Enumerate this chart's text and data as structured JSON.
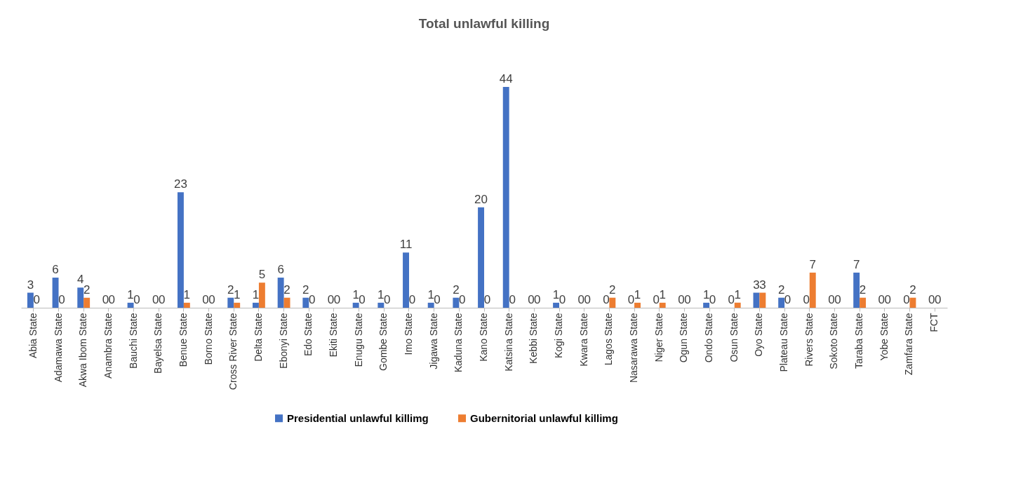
{
  "chart_data": {
    "type": "bar",
    "title": "Total unlawful killing",
    "categories": [
      "Abia State",
      "Adamawa State",
      "Akwa Ibom State",
      "Anambra State",
      "Bauchi State",
      "Bayelsa State",
      "Benue State",
      "Borno State",
      "Cross River State",
      "Delta State",
      "Ebonyi State",
      "Edo State",
      "Ekiti State",
      "Enugu State",
      "Gombe State",
      "Imo State",
      "Jigawa State",
      "Kaduna State",
      "Kano State",
      "Katsina State",
      "Kebbi State",
      "Kogi State",
      "Kwara State",
      "Lagos State",
      "Nasarawa State",
      "Niger State",
      "Ogun State",
      "Ondo State",
      "Osun State",
      "Oyo State",
      "Plateau State",
      "Rivers State",
      "Sokoto State",
      "Taraba State",
      "Yobe State",
      "Zamfara State",
      "FCT"
    ],
    "series": [
      {
        "name": "Presidential unlawful killimg",
        "color": "#4472c4",
        "values": [
          3,
          6,
          4,
          0,
          1,
          0,
          23,
          0,
          2,
          1,
          6,
          2,
          0,
          1,
          1,
          11,
          1,
          2,
          20,
          44,
          0,
          1,
          0,
          0,
          0,
          0,
          0,
          1,
          0,
          3,
          2,
          0,
          0,
          7,
          0,
          0,
          0
        ]
      },
      {
        "name": "Gubernitorial unlawful killimg",
        "color": "#ed7d31",
        "values": [
          0,
          0,
          2,
          0,
          0,
          0,
          1,
          0,
          1,
          5,
          2,
          0,
          0,
          0,
          0,
          0,
          0,
          0,
          0,
          0,
          0,
          0,
          0,
          2,
          1,
          1,
          0,
          0,
          1,
          3,
          0,
          7,
          0,
          2,
          0,
          2,
          0
        ]
      }
    ],
    "data_labels": true,
    "legend": "bottom",
    "grid": false
  }
}
